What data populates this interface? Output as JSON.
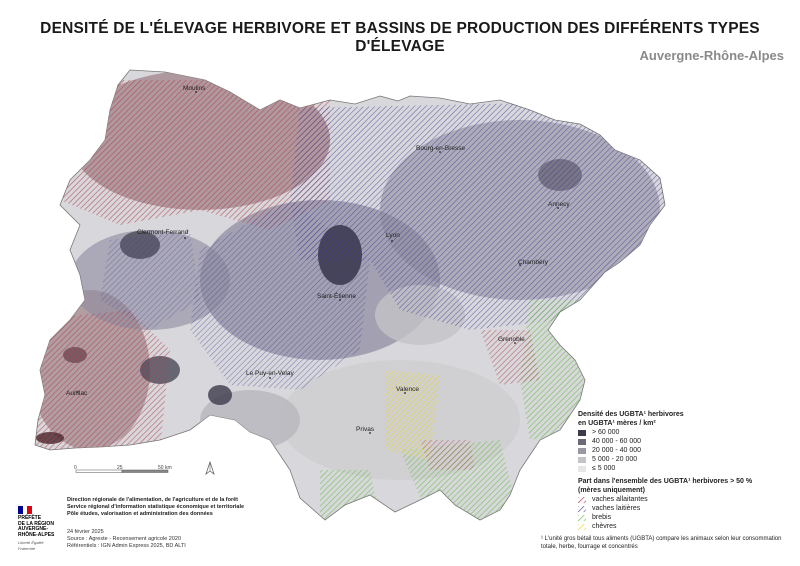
{
  "title": "DENSITÉ DE L'ÉLEVAGE HERBIVORE ET BASSINS DE PRODUCTION DES DIFFÉRENTS TYPES D'ÉLEVAGE",
  "subtitle": "Auvergne-Rhône-Alpes",
  "cities": [
    {
      "name": "Moulins"
    },
    {
      "name": "Bourg-en-Bresse"
    },
    {
      "name": "Annecy"
    },
    {
      "name": "Clermont-Ferrand"
    },
    {
      "name": "Lyon"
    },
    {
      "name": "Chambéry"
    },
    {
      "name": "Saint-Étienne"
    },
    {
      "name": "Grenoble"
    },
    {
      "name": "Le Puy-en-Velay"
    },
    {
      "name": "Valence"
    },
    {
      "name": "Aurillac"
    },
    {
      "name": "Privas"
    }
  ],
  "legend": {
    "density_title_1": "Densité des UGBTA¹ herbivores",
    "density_title_2": "en UGBTA¹ mères / km²",
    "density_classes": [
      {
        "label": "> 60 000",
        "color": "#3d3a4c"
      },
      {
        "label": "40 000 - 60 000",
        "color": "#6b6878"
      },
      {
        "label": "20 000 - 40 000",
        "color": "#9a98a2"
      },
      {
        "label": "5 000 - 20 000",
        "color": "#c4c3c8"
      },
      {
        "label": "≤ 5 000",
        "color": "#e6e6e8"
      }
    ],
    "share_title_1": "Part dans l'ensemble des UGBTA¹ herbivores > 50 %",
    "share_title_2": "(mères uniquement)",
    "share_classes": [
      {
        "label": "vaches allaitantes",
        "color": "#b0404a"
      },
      {
        "label": "vaches laitières",
        "color": "#3c3c98"
      },
      {
        "label": "brebis",
        "color": "#6cc04a"
      },
      {
        "label": "chèvres",
        "color": "#e8d530"
      }
    ]
  },
  "footnote": "¹ L'unité gros bétail tous aliments (UGBTA) compare les animaux selon leur consommation totale, herbe, fourrage et concentrés",
  "scale": {
    "ticks": [
      "0",
      "25",
      "50 km"
    ]
  },
  "credits": {
    "line1": "Direction régionale de l'alimentation, de l'agriculture et de la forêt",
    "line2": "Service régional d'information statistique économique et territoriale",
    "line3": "Pôle études, valorisation et administration des données"
  },
  "meta": {
    "date": "24 février 2025",
    "source": "Source : Agreste - Recensement agricole 2020",
    "refs": "Référentiels : IGN Admin Express 2025, BD ALTI"
  },
  "logo": {
    "line1": "PRÉFÈTE",
    "line2": "DE LA RÉGION",
    "line3": "AUVERGNE-",
    "line4": "RHÔNE-ALPES",
    "motto": "Liberté Égalité Fraternité"
  }
}
